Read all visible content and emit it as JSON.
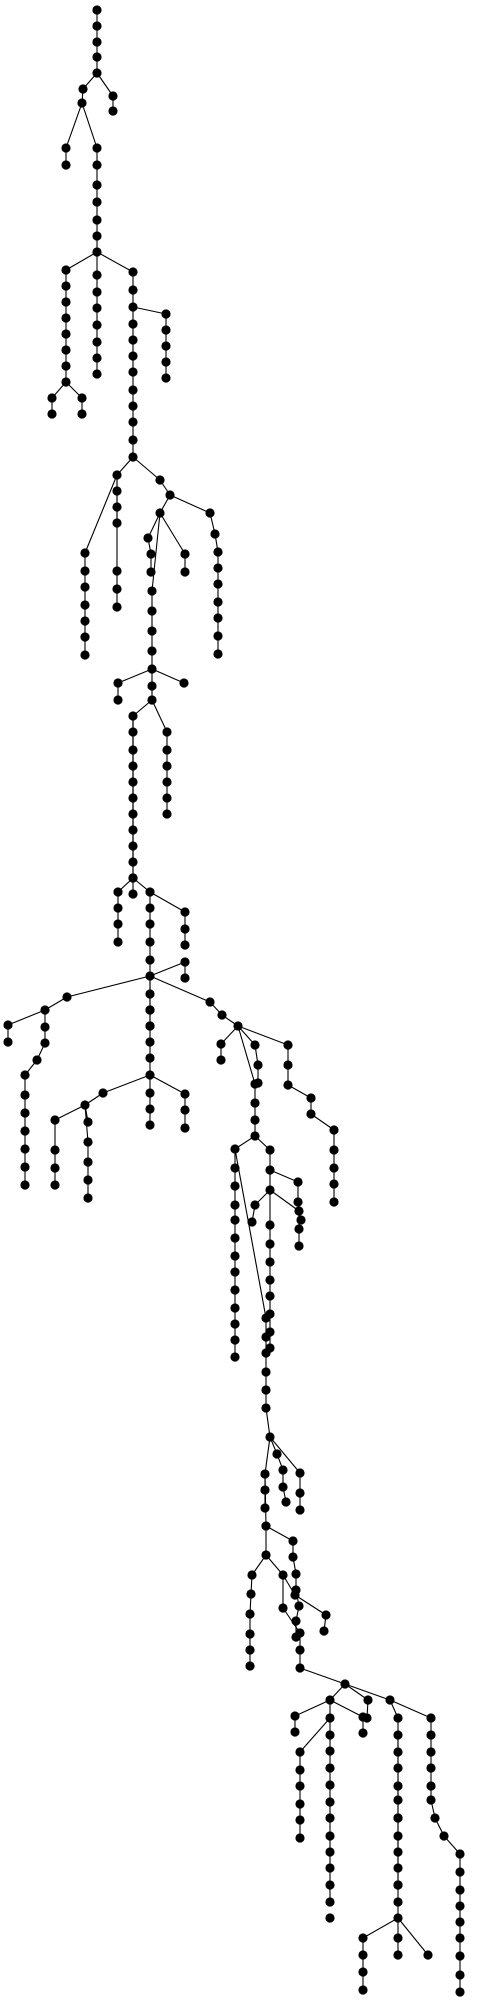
{
  "diagram": {
    "type": "tree",
    "root": "n0",
    "node_color": "#000000",
    "edge_color": "#000000",
    "background": "#ffffff",
    "labels_shown": false
  }
}
